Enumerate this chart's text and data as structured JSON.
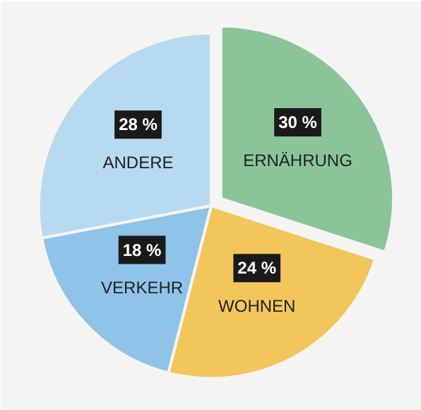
{
  "chart_data": {
    "type": "pie",
    "categories": [
      "ERNÄHRUNG",
      "WOHNEN",
      "VERKEHR",
      "ANDERE"
    ],
    "values": [
      30,
      24,
      18,
      28
    ],
    "colors": [
      "#8cc49a",
      "#f3c65c",
      "#8fc4e8",
      "#b8daf0"
    ],
    "value_labels": [
      "30 %",
      "24 %",
      "18 %",
      "28 %"
    ]
  }
}
